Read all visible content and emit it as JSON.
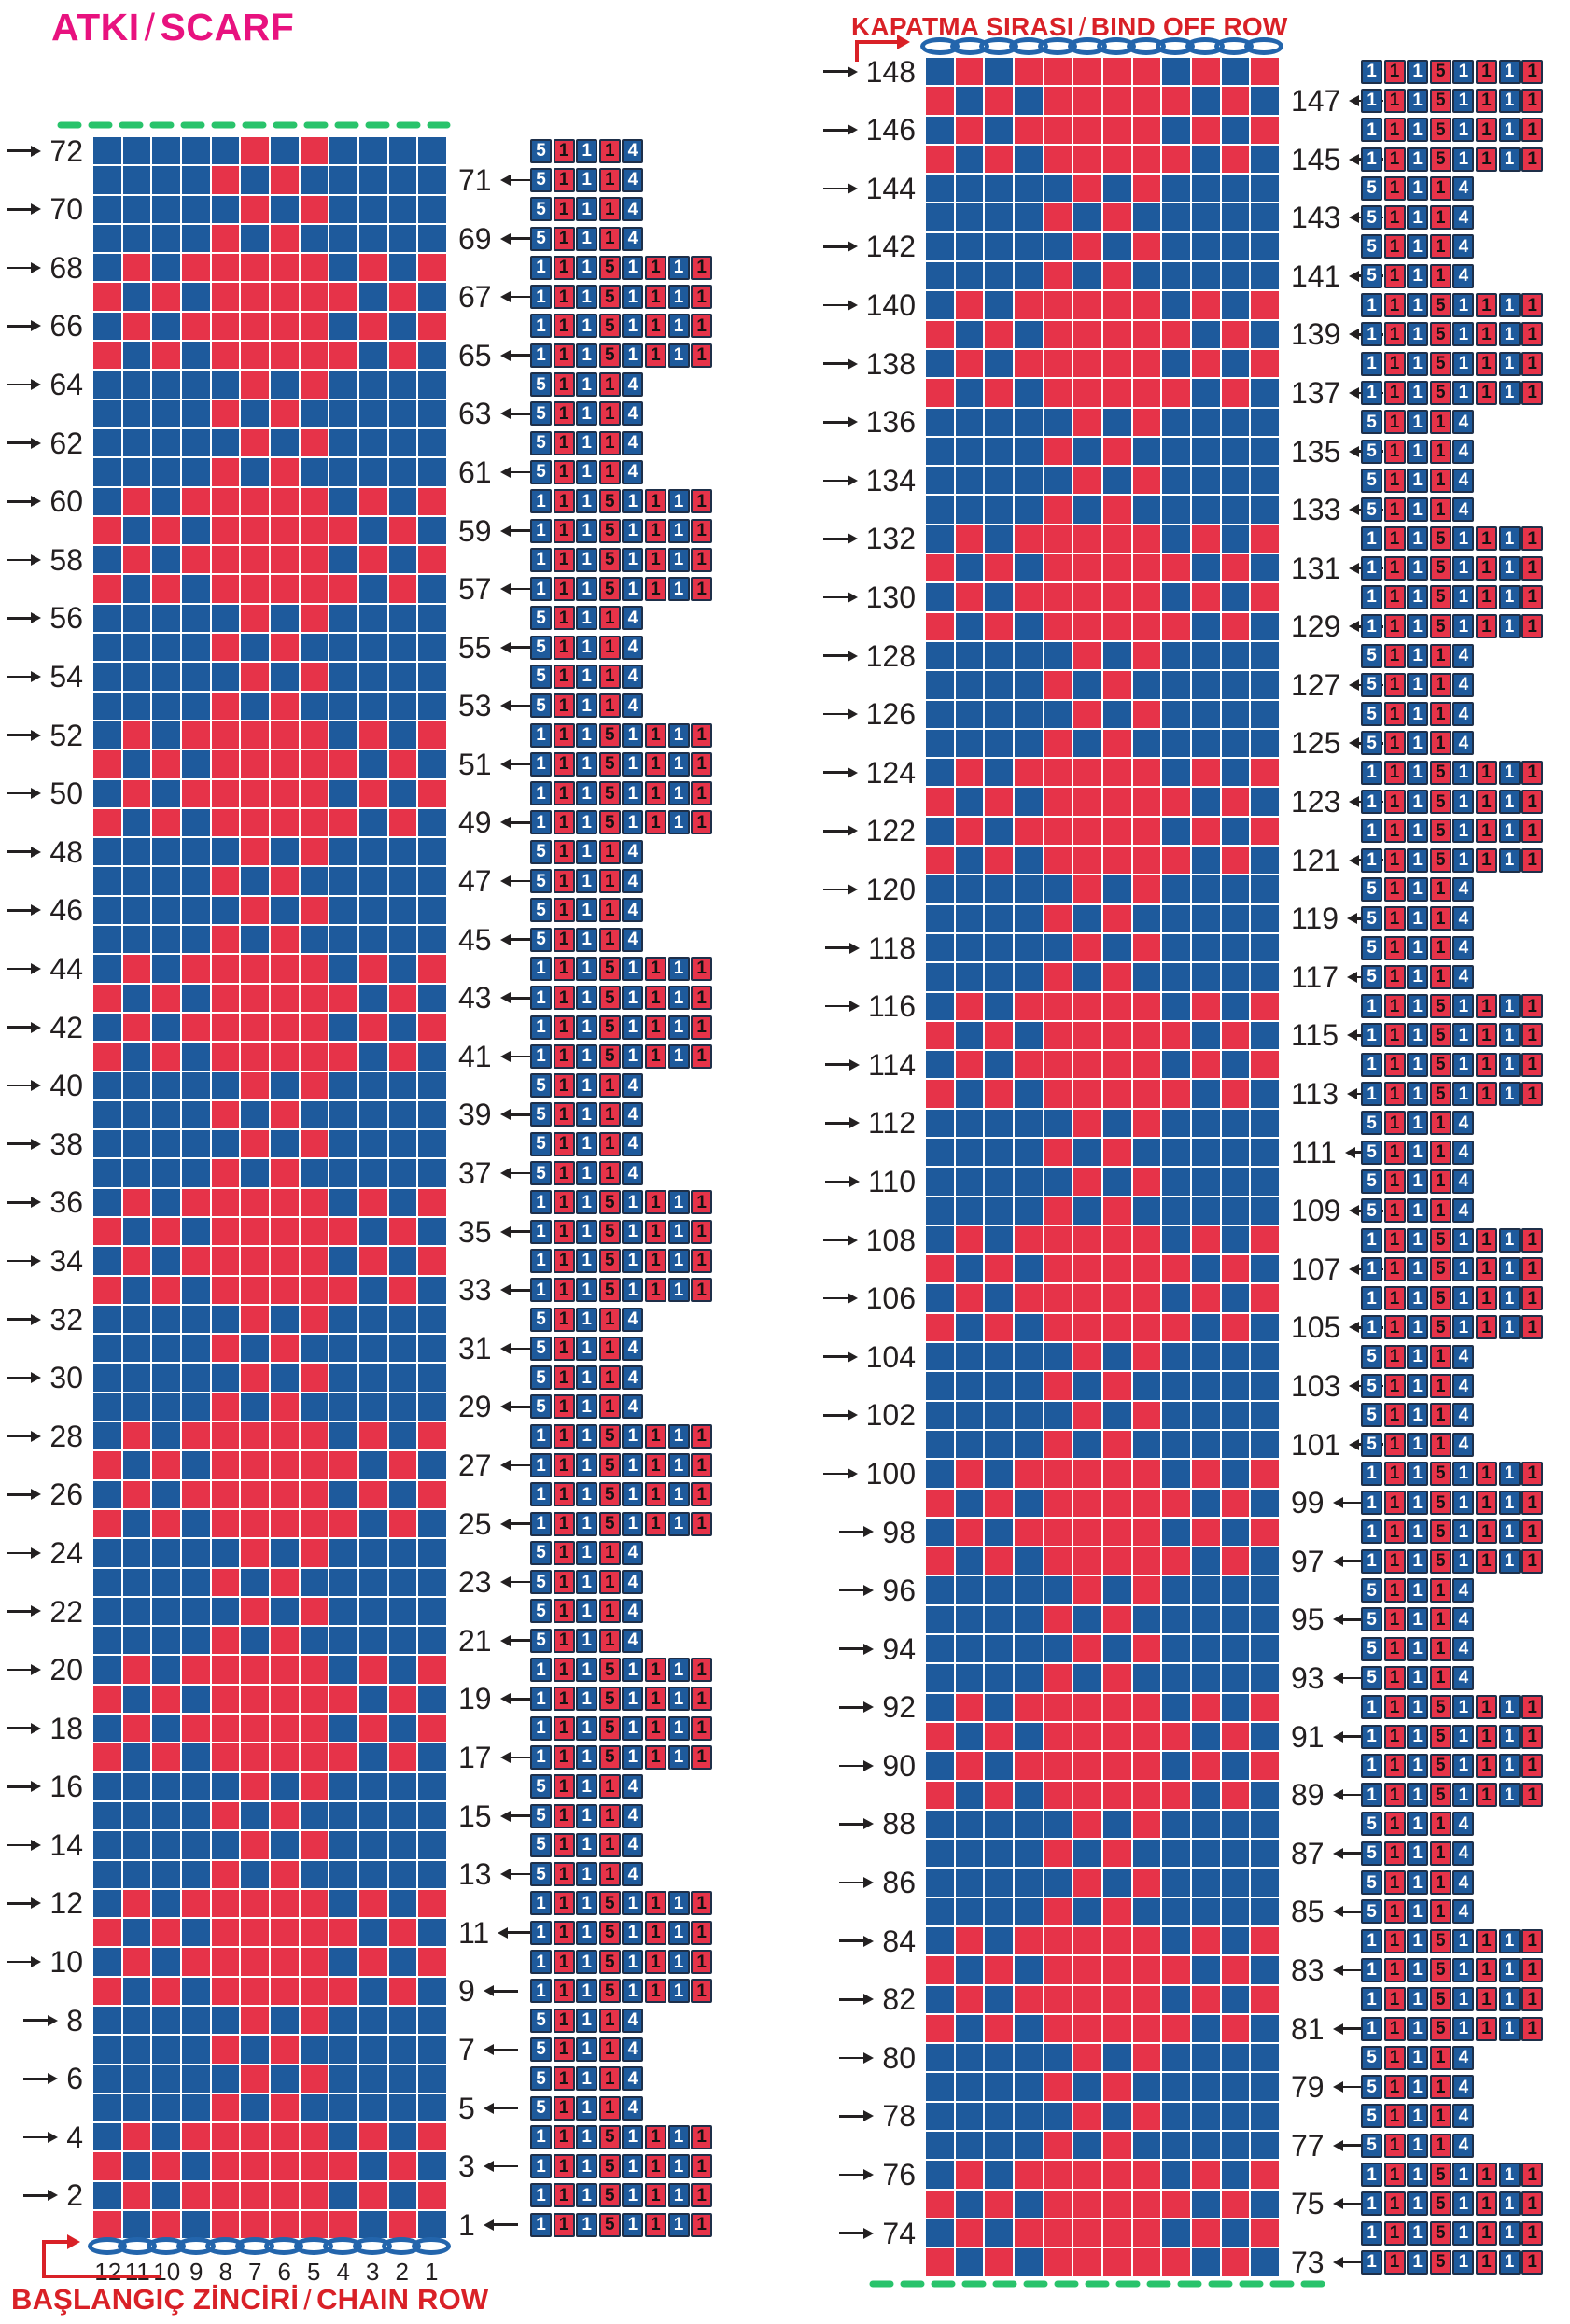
{
  "title": {
    "tr": "ATKI",
    "sep": "/",
    "en": "SCARF"
  },
  "bind_off_header": {
    "tr": "KAPATMA SIRASI",
    "sep": "/",
    "en": "BIND OFF ROW"
  },
  "chain_footer": {
    "tr": "BAŞLANGIÇ ZİNCİRİ",
    "sep": "/",
    "en": "CHAIN ROW"
  },
  "colors": {
    "stitch_blue": "#1E5A9C",
    "stitch_red": "#E63349",
    "oval_blue": "#2365AC",
    "title_magenta": "#E8127F",
    "text_red": "#D92127",
    "dash_green": "#29C36B",
    "label_dark": "#231F20",
    "box_border": "#1E2F49"
  },
  "column_numbers": [
    "12",
    "11",
    "10",
    "9",
    "8",
    "7",
    "6",
    "5",
    "4",
    "3",
    "2",
    "1"
  ],
  "chain_ovals_count": 12,
  "stitches_per_row": 12,
  "total_rows": 148,
  "row_patterns": {
    "be": {
      "cells": "BBBBBRBRBBBB",
      "seq": [
        [
          "5",
          "B"
        ],
        [
          "1",
          "R"
        ],
        [
          "1",
          "B"
        ],
        [
          "1",
          "R"
        ],
        [
          "4",
          "B"
        ]
      ]
    },
    "bo": {
      "cells": "BBBBRBRBBBBB",
      "seq": [
        [
          "5",
          "B"
        ],
        [
          "1",
          "R"
        ],
        [
          "1",
          "B"
        ],
        [
          "1",
          "R"
        ],
        [
          "4",
          "B"
        ]
      ]
    },
    "re": {
      "cells": "BRBRRRRRBRBR",
      "seq": [
        [
          "1",
          "B"
        ],
        [
          "1",
          "R"
        ],
        [
          "1",
          "B"
        ],
        [
          "5",
          "R"
        ],
        [
          "1",
          "B"
        ],
        [
          "1",
          "R"
        ],
        [
          "1",
          "B"
        ],
        [
          "1",
          "R"
        ]
      ]
    },
    "ro": {
      "cells": "RBRBRRRRRBRB",
      "seq": [
        [
          "1",
          "B"
        ],
        [
          "1",
          "R"
        ],
        [
          "1",
          "B"
        ],
        [
          "5",
          "R"
        ],
        [
          "1",
          "B"
        ],
        [
          "1",
          "R"
        ],
        [
          "1",
          "B"
        ],
        [
          "1",
          "R"
        ]
      ]
    }
  },
  "left_panel": {
    "rows": [
      [
        72,
        "be"
      ],
      [
        71,
        "bo"
      ],
      [
        70,
        "be"
      ],
      [
        69,
        "bo"
      ],
      [
        68,
        "re"
      ],
      [
        67,
        "ro"
      ],
      [
        66,
        "re"
      ],
      [
        65,
        "ro"
      ],
      [
        64,
        "be"
      ],
      [
        63,
        "bo"
      ],
      [
        62,
        "be"
      ],
      [
        61,
        "bo"
      ],
      [
        60,
        "re"
      ],
      [
        59,
        "ro"
      ],
      [
        58,
        "re"
      ],
      [
        57,
        "ro"
      ],
      [
        56,
        "be"
      ],
      [
        55,
        "bo"
      ],
      [
        54,
        "be"
      ],
      [
        53,
        "bo"
      ],
      [
        52,
        "re"
      ],
      [
        51,
        "ro"
      ],
      [
        50,
        "re"
      ],
      [
        49,
        "ro"
      ],
      [
        48,
        "be"
      ],
      [
        47,
        "bo"
      ],
      [
        46,
        "be"
      ],
      [
        45,
        "bo"
      ],
      [
        44,
        "re"
      ],
      [
        43,
        "ro"
      ],
      [
        42,
        "re"
      ],
      [
        41,
        "ro"
      ],
      [
        40,
        "be"
      ],
      [
        39,
        "bo"
      ],
      [
        38,
        "be"
      ],
      [
        37,
        "bo"
      ],
      [
        36,
        "re"
      ],
      [
        35,
        "ro"
      ],
      [
        34,
        "re"
      ],
      [
        33,
        "ro"
      ],
      [
        32,
        "be"
      ],
      [
        31,
        "bo"
      ],
      [
        30,
        "be"
      ],
      [
        29,
        "bo"
      ],
      [
        28,
        "re"
      ],
      [
        27,
        "ro"
      ],
      [
        26,
        "re"
      ],
      [
        25,
        "ro"
      ],
      [
        24,
        "be"
      ],
      [
        23,
        "bo"
      ],
      [
        22,
        "be"
      ],
      [
        21,
        "bo"
      ],
      [
        20,
        "re"
      ],
      [
        19,
        "ro"
      ],
      [
        18,
        "re"
      ],
      [
        17,
        "ro"
      ],
      [
        16,
        "be"
      ],
      [
        15,
        "bo"
      ],
      [
        14,
        "be"
      ],
      [
        13,
        "bo"
      ],
      [
        12,
        "re"
      ],
      [
        11,
        "ro"
      ],
      [
        10,
        "re"
      ],
      [
        9,
        "ro"
      ],
      [
        8,
        "be"
      ],
      [
        7,
        "bo"
      ],
      [
        6,
        "be"
      ],
      [
        5,
        "bo"
      ],
      [
        4,
        "re"
      ],
      [
        3,
        "ro"
      ],
      [
        2,
        "re"
      ],
      [
        1,
        "ro"
      ]
    ]
  },
  "right_panel": {
    "rows": [
      [
        148,
        "re"
      ],
      [
        147,
        "ro"
      ],
      [
        146,
        "re"
      ],
      [
        145,
        "ro"
      ],
      [
        144,
        "be"
      ],
      [
        143,
        "bo"
      ],
      [
        142,
        "be"
      ],
      [
        141,
        "bo"
      ],
      [
        140,
        "re"
      ],
      [
        139,
        "ro"
      ],
      [
        138,
        "re"
      ],
      [
        137,
        "ro"
      ],
      [
        136,
        "be"
      ],
      [
        135,
        "bo"
      ],
      [
        134,
        "be"
      ],
      [
        133,
        "bo"
      ],
      [
        132,
        "re"
      ],
      [
        131,
        "ro"
      ],
      [
        130,
        "re"
      ],
      [
        129,
        "ro"
      ],
      [
        128,
        "be"
      ],
      [
        127,
        "bo"
      ],
      [
        126,
        "be"
      ],
      [
        125,
        "bo"
      ],
      [
        124,
        "re"
      ],
      [
        123,
        "ro"
      ],
      [
        122,
        "re"
      ],
      [
        121,
        "ro"
      ],
      [
        120,
        "be"
      ],
      [
        119,
        "bo"
      ],
      [
        118,
        "be"
      ],
      [
        117,
        "bo"
      ],
      [
        116,
        "re"
      ],
      [
        115,
        "ro"
      ],
      [
        114,
        "re"
      ],
      [
        113,
        "ro"
      ],
      [
        112,
        "be"
      ],
      [
        111,
        "bo"
      ],
      [
        110,
        "be"
      ],
      [
        109,
        "bo"
      ],
      [
        108,
        "re"
      ],
      [
        107,
        "ro"
      ],
      [
        106,
        "re"
      ],
      [
        105,
        "ro"
      ],
      [
        104,
        "be"
      ],
      [
        103,
        "bo"
      ],
      [
        102,
        "be"
      ],
      [
        101,
        "bo"
      ],
      [
        100,
        "re"
      ],
      [
        99,
        "ro"
      ],
      [
        98,
        "re"
      ],
      [
        97,
        "ro"
      ],
      [
        96,
        "be"
      ],
      [
        95,
        "bo"
      ],
      [
        94,
        "be"
      ],
      [
        93,
        "bo"
      ],
      [
        92,
        "re"
      ],
      [
        91,
        "ro"
      ],
      [
        90,
        "re"
      ],
      [
        89,
        "ro"
      ],
      [
        88,
        "be"
      ],
      [
        87,
        "bo"
      ],
      [
        86,
        "be"
      ],
      [
        85,
        "bo"
      ],
      [
        84,
        "re"
      ],
      [
        83,
        "ro"
      ],
      [
        82,
        "re"
      ],
      [
        81,
        "ro"
      ],
      [
        80,
        "be"
      ],
      [
        79,
        "bo"
      ],
      [
        78,
        "be"
      ],
      [
        77,
        "bo"
      ],
      [
        76,
        "re"
      ],
      [
        75,
        "ro"
      ],
      [
        74,
        "re"
      ],
      [
        73,
        "ro"
      ]
    ]
  }
}
